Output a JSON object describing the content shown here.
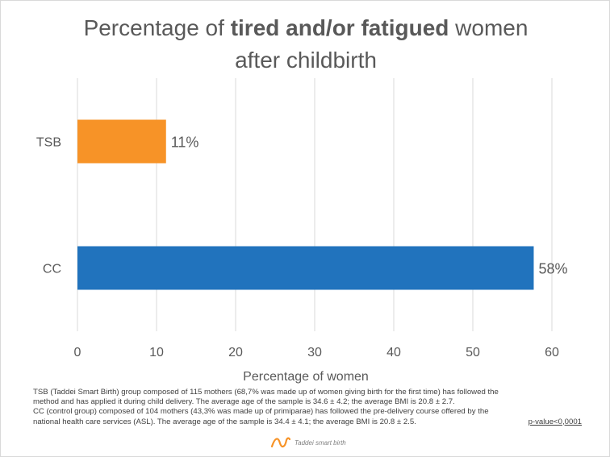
{
  "chart_data": {
    "type": "bar",
    "orientation": "horizontal",
    "title": {
      "before": "Percentage of ",
      "bold": "tired and/or fatigued",
      "after_line1": " women",
      "line2": "after childbirth"
    },
    "categories": [
      "TSB",
      "CC"
    ],
    "values": [
      11.2,
      57.7
    ],
    "data_labels": [
      "11%",
      "58%"
    ],
    "colors": [
      "#f79327",
      "#2173bd"
    ],
    "xlabel": "Percentage of women",
    "ylabel": "",
    "xlim": [
      0,
      60
    ],
    "xticks": [
      "0",
      "10",
      "20",
      "30",
      "40",
      "50",
      "60"
    ],
    "grid": "vertical",
    "legend": "none"
  },
  "notes": {
    "line1": "TSB (Taddei Smart Birth) group composed of 115 mothers (68,7% was made up of women giving birth for the first time) has followed the",
    "line2": "method and has applied it during child delivery. The average age of the sample is 34.6 ± 4.2; the average BMI is 20.8 ± 2.7.",
    "line3": "CC (control group) composed of 104 mothers (43,3% was made up of primiparae) has followed the pre-delivery course offered by the",
    "line4": "national health care services (ASL). The average age of the sample is 34.4 ± 4.1; the average BMI is 20.8 ± 2.5.",
    "pvalue": "p-value<0,0001"
  },
  "logo": {
    "text": "Taddei smart birth",
    "icon": "wave-icon",
    "color": "#f79327"
  }
}
